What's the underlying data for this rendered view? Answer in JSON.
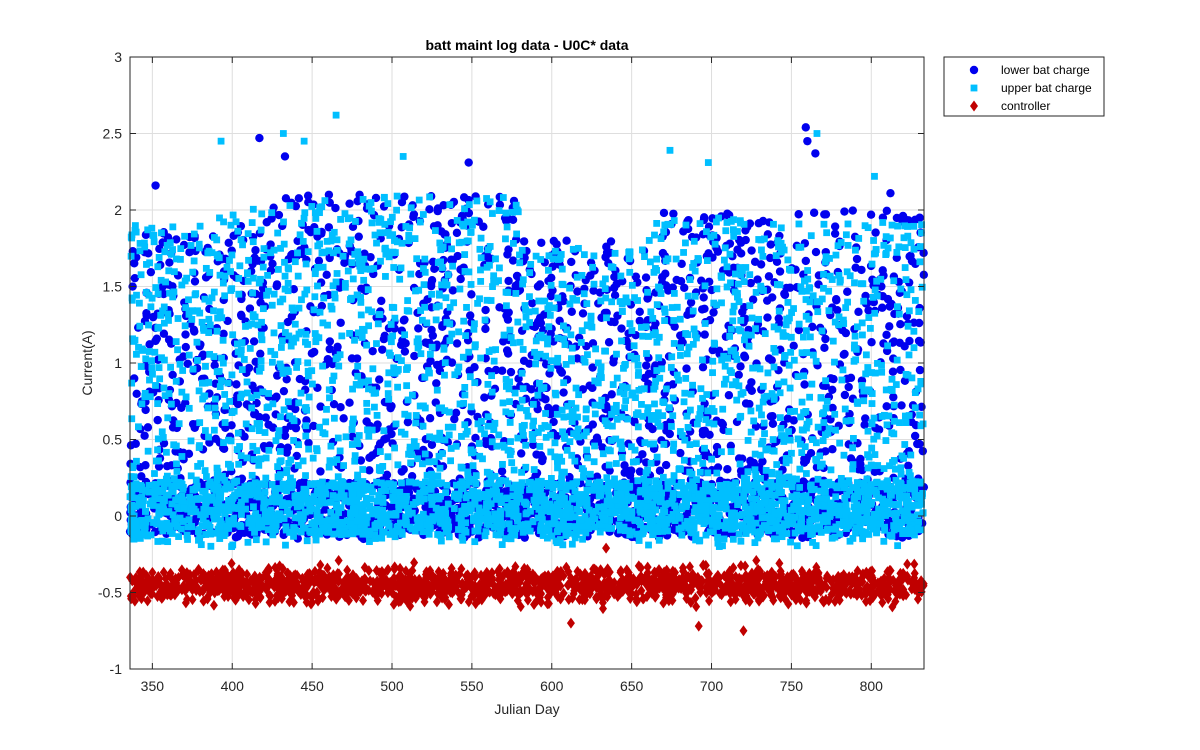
{
  "chart_data": {
    "type": "scatter",
    "title": "batt maint log data - U0C* data",
    "xlabel": "Julian Day",
    "ylabel": "Current(A)",
    "xlim": [
      336,
      833
    ],
    "ylim": [
      -1,
      3
    ],
    "xticks": [
      350,
      400,
      450,
      500,
      550,
      600,
      650,
      700,
      750,
      800
    ],
    "yticks": [
      -1,
      -0.5,
      0,
      0.5,
      1,
      1.5,
      2,
      2.5,
      3
    ],
    "grid": true,
    "legend_position": "outside-top-right",
    "series": [
      {
        "name": "lower bat charge",
        "marker": "circle",
        "color": "#0000ee",
        "value_ranges": [
          {
            "x": [
              336,
              420
            ],
            "y": [
              -0.15,
              1.9
            ]
          },
          {
            "x": [
              420,
              580
            ],
            "y": [
              -0.15,
              2.1
            ]
          },
          {
            "x": [
              580,
              660
            ],
            "y": [
              -0.15,
              1.8
            ]
          },
          {
            "x": [
              660,
              833
            ],
            "y": [
              -0.15,
              2.0
            ]
          }
        ],
        "highlights": [
          {
            "x": 352,
            "y": 2.16
          },
          {
            "x": 417,
            "y": 2.47
          },
          {
            "x": 433,
            "y": 2.35
          },
          {
            "x": 548,
            "y": 2.31
          },
          {
            "x": 759,
            "y": 2.54
          },
          {
            "x": 760,
            "y": 2.45
          },
          {
            "x": 765,
            "y": 2.37
          },
          {
            "x": 812,
            "y": 2.11
          }
        ]
      },
      {
        "name": "upper bat charge",
        "marker": "square",
        "color": "#00bfff",
        "value_ranges": [
          {
            "x": [
              336,
              390
            ],
            "y": [
              -0.2,
              1.9
            ]
          },
          {
            "x": [
              390,
              580
            ],
            "y": [
              -0.2,
              2.1
            ]
          },
          {
            "x": [
              580,
              660
            ],
            "y": [
              -0.2,
              1.75
            ]
          },
          {
            "x": [
              660,
              833
            ],
            "y": [
              -0.2,
              1.95
            ]
          }
        ],
        "highlights": [
          {
            "x": 465,
            "y": 2.62
          },
          {
            "x": 432,
            "y": 2.5
          },
          {
            "x": 445,
            "y": 2.45
          },
          {
            "x": 393,
            "y": 2.45
          },
          {
            "x": 766,
            "y": 2.5
          },
          {
            "x": 674,
            "y": 2.39
          },
          {
            "x": 698,
            "y": 2.31
          },
          {
            "x": 507,
            "y": 2.35
          },
          {
            "x": 802,
            "y": 2.22
          }
        ]
      },
      {
        "name": "controller",
        "marker": "diamond",
        "color": "#c00000",
        "value_ranges": [
          {
            "x": [
              336,
              833
            ],
            "y": [
              -0.6,
              -0.3
            ]
          }
        ],
        "highlights": [
          {
            "x": 634,
            "y": -0.21
          },
          {
            "x": 720,
            "y": -0.75
          },
          {
            "x": 692,
            "y": -0.72
          },
          {
            "x": 612,
            "y": -0.7
          }
        ]
      }
    ]
  }
}
